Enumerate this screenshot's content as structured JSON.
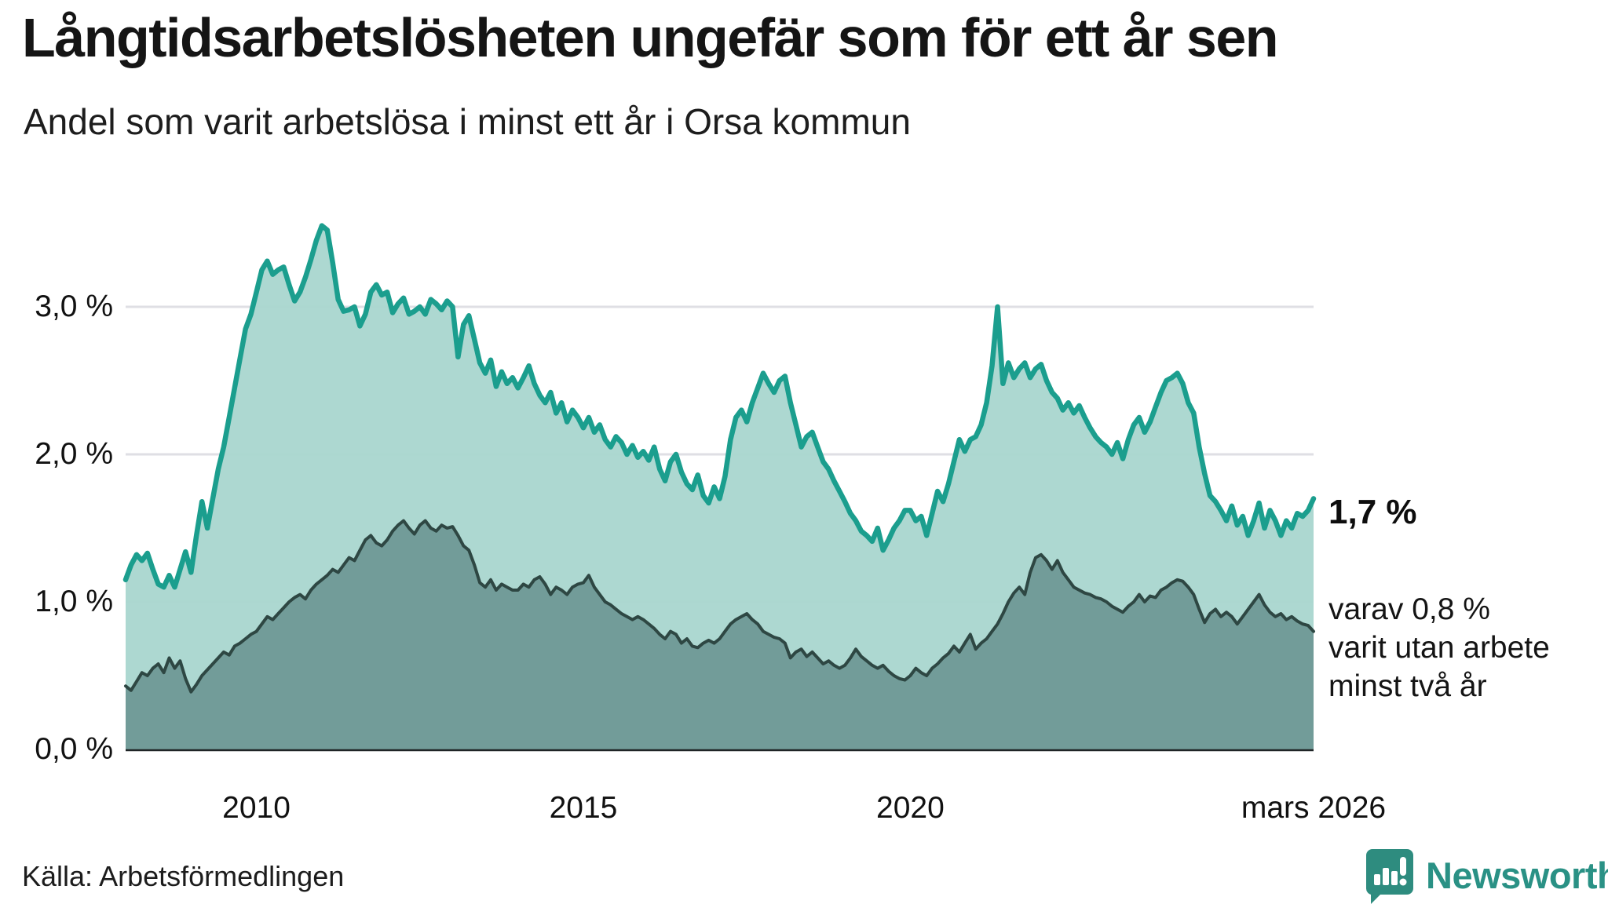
{
  "title": "Långtidsarbetslösheten ungefär som för ett år sen",
  "subtitle": "Andel som varit arbetslösa i minst ett år i Orsa kommun",
  "source": "Källa: Arbetsförmedlingen",
  "brand": {
    "name": "Newsworthy",
    "color": "#2e8c7f"
  },
  "annotations": {
    "latest_value": "1,7 %",
    "secondary_line1": "varav 0,8 %",
    "secondary_line2": "varit utan arbete",
    "secondary_line3": "minst två år"
  },
  "chart_data": {
    "type": "area",
    "title": "Andel som varit arbetslösa i minst ett år i Orsa kommun",
    "x_start_year": 2008.0,
    "x_end_year": 2026.1667,
    "x_step_months": 1,
    "ylim": [
      0,
      3.7
    ],
    "grid": true,
    "colors": {
      "gridline": "#dfdfe4",
      "axis_line": "#1f2426",
      "line_one_year": "#1b9e8e",
      "fill_one_year": "#a9d6cf",
      "line_two_year": "#2e4743",
      "fill_two_year": "#6f9a97"
    },
    "y_ticks": [
      {
        "label": "0,0 %",
        "value": 0
      },
      {
        "label": "1,0 %",
        "value": 1
      },
      {
        "label": "2,0 %",
        "value": 2
      },
      {
        "label": "3,0 %",
        "value": 3
      }
    ],
    "x_ticks": [
      {
        "label": "2010",
        "year": 2010
      },
      {
        "label": "2015",
        "year": 2015
      },
      {
        "label": "2020",
        "year": 2020
      },
      {
        "label": "mars 2026",
        "year": 2026.1667
      }
    ],
    "series": [
      {
        "name": "Andel arbetslösa minst ett år",
        "end_label": "1,7 %",
        "values": [
          1.15,
          1.25,
          1.32,
          1.28,
          1.33,
          1.22,
          1.12,
          1.1,
          1.18,
          1.1,
          1.22,
          1.34,
          1.2,
          1.45,
          1.68,
          1.5,
          1.7,
          1.9,
          2.05,
          2.25,
          2.45,
          2.65,
          2.85,
          2.95,
          3.1,
          3.25,
          3.31,
          3.22,
          3.25,
          3.27,
          3.15,
          3.04,
          3.1,
          3.2,
          3.32,
          3.45,
          3.55,
          3.52,
          3.3,
          3.05,
          2.97,
          2.98,
          3.0,
          2.87,
          2.95,
          3.1,
          3.15,
          3.08,
          3.1,
          2.96,
          3.02,
          3.06,
          2.95,
          2.97,
          3.0,
          2.95,
          3.05,
          3.02,
          2.98,
          3.04,
          3.0,
          2.66,
          2.88,
          2.94,
          2.78,
          2.62,
          2.55,
          2.64,
          2.46,
          2.56,
          2.48,
          2.52,
          2.45,
          2.52,
          2.6,
          2.48,
          2.4,
          2.35,
          2.42,
          2.28,
          2.35,
          2.22,
          2.3,
          2.25,
          2.18,
          2.25,
          2.15,
          2.2,
          2.1,
          2.05,
          2.12,
          2.08,
          2.0,
          2.06,
          1.98,
          2.02,
          1.96,
          2.05,
          1.9,
          1.82,
          1.95,
          2.0,
          1.88,
          1.8,
          1.76,
          1.86,
          1.72,
          1.67,
          1.78,
          1.7,
          1.85,
          2.1,
          2.25,
          2.3,
          2.22,
          2.35,
          2.45,
          2.55,
          2.48,
          2.42,
          2.5,
          2.53,
          2.35,
          2.2,
          2.05,
          2.12,
          2.15,
          2.05,
          1.95,
          1.9,
          1.82,
          1.75,
          1.68,
          1.6,
          1.55,
          1.48,
          1.45,
          1.41,
          1.5,
          1.35,
          1.42,
          1.5,
          1.55,
          1.62,
          1.62,
          1.55,
          1.58,
          1.45,
          1.6,
          1.75,
          1.68,
          1.8,
          1.95,
          2.1,
          2.02,
          2.1,
          2.12,
          2.2,
          2.35,
          2.6,
          3.0,
          2.48,
          2.62,
          2.52,
          2.58,
          2.62,
          2.52,
          2.58,
          2.61,
          2.5,
          2.42,
          2.38,
          2.3,
          2.35,
          2.28,
          2.33,
          2.25,
          2.18,
          2.12,
          2.08,
          2.05,
          2.0,
          2.08,
          1.97,
          2.1,
          2.2,
          2.25,
          2.15,
          2.22,
          2.32,
          2.42,
          2.5,
          2.52,
          2.55,
          2.48,
          2.35,
          2.28,
          2.05,
          1.87,
          1.72,
          1.68,
          1.62,
          1.55,
          1.65,
          1.52,
          1.58,
          1.45,
          1.55,
          1.67,
          1.5,
          1.62,
          1.55,
          1.45,
          1.55,
          1.5,
          1.6,
          1.58,
          1.62,
          1.7
        ]
      },
      {
        "name": "Andel arbetslösa minst två år",
        "end_label": "0,8 %",
        "values": [
          0.43,
          0.4,
          0.46,
          0.52,
          0.5,
          0.55,
          0.58,
          0.52,
          0.62,
          0.55,
          0.6,
          0.48,
          0.39,
          0.44,
          0.5,
          0.54,
          0.58,
          0.62,
          0.66,
          0.64,
          0.7,
          0.72,
          0.75,
          0.78,
          0.8,
          0.85,
          0.9,
          0.88,
          0.92,
          0.96,
          1.0,
          1.03,
          1.05,
          1.02,
          1.08,
          1.12,
          1.15,
          1.18,
          1.22,
          1.2,
          1.25,
          1.3,
          1.28,
          1.35,
          1.42,
          1.45,
          1.4,
          1.38,
          1.42,
          1.48,
          1.52,
          1.55,
          1.5,
          1.46,
          1.52,
          1.55,
          1.5,
          1.48,
          1.52,
          1.5,
          1.51,
          1.45,
          1.38,
          1.35,
          1.25,
          1.13,
          1.1,
          1.15,
          1.08,
          1.12,
          1.1,
          1.08,
          1.08,
          1.12,
          1.1,
          1.15,
          1.17,
          1.12,
          1.05,
          1.1,
          1.08,
          1.05,
          1.1,
          1.12,
          1.13,
          1.18,
          1.1,
          1.05,
          1.0,
          0.98,
          0.95,
          0.92,
          0.9,
          0.88,
          0.9,
          0.88,
          0.85,
          0.82,
          0.78,
          0.75,
          0.8,
          0.78,
          0.72,
          0.75,
          0.7,
          0.69,
          0.72,
          0.74,
          0.72,
          0.75,
          0.8,
          0.85,
          0.88,
          0.9,
          0.92,
          0.88,
          0.85,
          0.8,
          0.78,
          0.76,
          0.75,
          0.72,
          0.62,
          0.66,
          0.68,
          0.63,
          0.66,
          0.62,
          0.58,
          0.6,
          0.57,
          0.55,
          0.57,
          0.62,
          0.68,
          0.63,
          0.6,
          0.57,
          0.55,
          0.57,
          0.53,
          0.5,
          0.48,
          0.47,
          0.5,
          0.55,
          0.52,
          0.5,
          0.55,
          0.58,
          0.62,
          0.65,
          0.7,
          0.66,
          0.72,
          0.78,
          0.68,
          0.72,
          0.75,
          0.8,
          0.85,
          0.92,
          1.0,
          1.06,
          1.1,
          1.05,
          1.2,
          1.3,
          1.32,
          1.28,
          1.22,
          1.28,
          1.2,
          1.15,
          1.1,
          1.08,
          1.06,
          1.05,
          1.03,
          1.02,
          1.0,
          0.97,
          0.95,
          0.93,
          0.97,
          1.0,
          1.05,
          1.0,
          1.04,
          1.03,
          1.08,
          1.1,
          1.13,
          1.15,
          1.14,
          1.1,
          1.05,
          0.95,
          0.86,
          0.92,
          0.95,
          0.9,
          0.93,
          0.9,
          0.85,
          0.9,
          0.95,
          1.0,
          1.05,
          0.98,
          0.93,
          0.9,
          0.92,
          0.88,
          0.9,
          0.87,
          0.85,
          0.84,
          0.8
        ]
      }
    ]
  }
}
